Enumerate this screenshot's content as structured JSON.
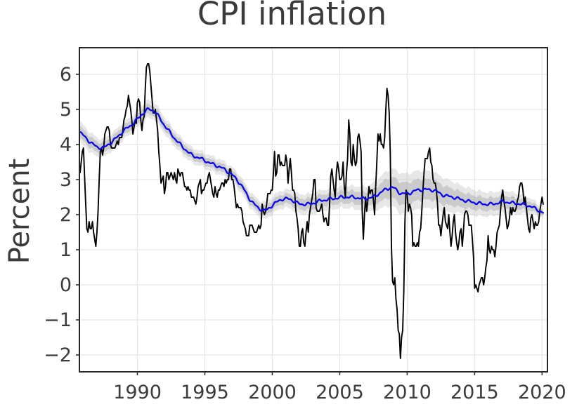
{
  "figure": {
    "title": "CPI inflation",
    "ylabel": "Percent"
  },
  "chart_data": {
    "type": "line",
    "title": "CPI inflation",
    "xlabel": "",
    "ylabel": "Percent",
    "xlim": [
      1985.7,
      2020.4
    ],
    "ylim": [
      -2.48,
      6.76
    ],
    "grid": true,
    "legend_position": "none",
    "xticks": {
      "values": [
        1990,
        1995,
        2000,
        2005,
        2010,
        2015,
        2020
      ],
      "labels": [
        "1990",
        "1995",
        "2000",
        "2005",
        "2010",
        "2015",
        "2020"
      ]
    },
    "yticks": {
      "values": [
        6,
        5,
        4,
        3,
        2,
        1,
        0,
        -1,
        -2
      ],
      "labels": [
        "6",
        "5",
        "4",
        "3",
        "2",
        "1",
        "0",
        "−1",
        "−2"
      ]
    },
    "style": {
      "background": "#ffffff",
      "grid_color": "#e7e7e7",
      "frame_color": "#262626",
      "tick_color": "#333333",
      "text_color": "#3b3b3b",
      "cpi_line_color": "#000000",
      "trend_line_color": "#0a0ae6",
      "band_outer_color": "#bfbfbf",
      "band_inner_color": "#a8a8a8"
    },
    "series": [
      {
        "name": "cpi-inflation-monthly",
        "type": "line",
        "color": "#000000",
        "start_year": 1985.75,
        "step_years": 0.0833333,
        "values": [
          3.2,
          3.5,
          3.8,
          3.9,
          3.1,
          2.3,
          1.6,
          1.5,
          1.8,
          1.6,
          1.6,
          1.8,
          1.5,
          1.3,
          1.1,
          1.5,
          2.1,
          3.0,
          3.8,
          3.9,
          3.7,
          3.9,
          4.3,
          4.4,
          4.5,
          4.5,
          4.4,
          4.0,
          3.9,
          3.9,
          3.9,
          3.9,
          4.0,
          4.1,
          4.0,
          4.2,
          4.2,
          4.2,
          4.4,
          4.7,
          4.8,
          5.0,
          5.1,
          5.4,
          5.2,
          5.0,
          4.7,
          4.3,
          4.5,
          4.7,
          4.6,
          5.2,
          5.3,
          5.2,
          4.7,
          4.4,
          4.7,
          4.8,
          5.6,
          6.2,
          6.3,
          6.3,
          6.1,
          5.7,
          5.3,
          4.9,
          4.9,
          5.0,
          4.7,
          4.4,
          3.8,
          3.4,
          2.9,
          3.0,
          3.1,
          2.6,
          2.8,
          3.2,
          3.2,
          3.0,
          3.1,
          3.2,
          3.1,
          3.0,
          3.2,
          3.0,
          2.9,
          3.3,
          3.2,
          3.1,
          3.2,
          3.2,
          3.0,
          2.8,
          2.8,
          2.7,
          2.8,
          2.7,
          2.7,
          2.5,
          2.5,
          2.5,
          2.4,
          2.3,
          2.5,
          2.8,
          2.9,
          3.0,
          2.6,
          2.7,
          2.7,
          2.8,
          2.9,
          2.9,
          3.1,
          3.2,
          3.0,
          2.8,
          2.6,
          2.5,
          2.8,
          2.6,
          2.5,
          2.7,
          2.7,
          2.8,
          2.9,
          2.9,
          2.8,
          3.0,
          2.9,
          3.0,
          3.0,
          3.3,
          3.3,
          3.0,
          3.0,
          2.8,
          2.5,
          2.2,
          2.3,
          2.2,
          2.2,
          2.2,
          2.1,
          1.8,
          1.7,
          1.6,
          1.4,
          1.4,
          1.4,
          1.7,
          1.7,
          1.7,
          1.6,
          1.5,
          1.5,
          1.5,
          1.6,
          1.7,
          1.6,
          1.7,
          2.3,
          2.1,
          2.0,
          2.1,
          2.3,
          2.6,
          2.6,
          2.6,
          2.7,
          2.7,
          3.2,
          3.8,
          3.1,
          3.2,
          3.7,
          3.7,
          3.4,
          3.5,
          3.4,
          3.4,
          3.4,
          3.7,
          3.5,
          2.9,
          3.3,
          3.6,
          3.2,
          2.7,
          2.7,
          2.6,
          2.1,
          1.9,
          1.6,
          1.1,
          1.1,
          1.5,
          1.6,
          1.2,
          1.1,
          1.5,
          1.8,
          1.5,
          2.0,
          2.2,
          2.4,
          2.6,
          3.0,
          3.0,
          2.2,
          2.1,
          2.1,
          2.1,
          2.2,
          2.3,
          2.0,
          1.8,
          1.9,
          1.9,
          1.7,
          1.7,
          2.3,
          3.1,
          3.3,
          3.0,
          2.7,
          2.5,
          3.2,
          3.5,
          3.3,
          3.0,
          3.0,
          3.1,
          3.5,
          2.8,
          2.5,
          3.2,
          3.6,
          4.7,
          4.3,
          3.5,
          3.4,
          4.0,
          3.6,
          3.4,
          3.5,
          4.2,
          4.3,
          4.1,
          3.8,
          2.1,
          1.3,
          2.0,
          2.5,
          2.1,
          2.4,
          2.8,
          2.6,
          2.7,
          2.7,
          2.4,
          2.0,
          2.8,
          3.5,
          4.3,
          4.1,
          4.3,
          4.0,
          4.0,
          3.9,
          4.2,
          5.0,
          5.6,
          5.4,
          4.9,
          3.7,
          1.1,
          0.1,
          0.0,
          0.2,
          -0.4,
          -0.7,
          -1.3,
          -1.4,
          -2.1,
          -1.5,
          -1.3,
          -0.2,
          1.8,
          2.7,
          2.6,
          2.1,
          2.3,
          2.2,
          2.0,
          1.1,
          1.2,
          1.1,
          1.1,
          1.2,
          1.1,
          1.5,
          1.6,
          2.1,
          2.7,
          3.2,
          3.6,
          3.6,
          3.6,
          3.8,
          3.9,
          3.5,
          3.4,
          3.0,
          2.9,
          2.9,
          2.7,
          2.3,
          1.7,
          1.7,
          1.4,
          1.7,
          2.0,
          2.2,
          1.8,
          1.7,
          1.6,
          2.0,
          1.5,
          1.1,
          1.4,
          1.8,
          2.0,
          1.5,
          1.2,
          1.0,
          1.2,
          1.5,
          1.6,
          1.1,
          1.5,
          2.0,
          2.1,
          2.1,
          2.0,
          1.7,
          1.7,
          1.7,
          1.3,
          0.8,
          -0.1,
          0.0,
          -0.1,
          -0.2,
          0.0,
          0.1,
          0.2,
          0.2,
          0.0,
          0.2,
          0.5,
          0.7,
          1.4,
          1.0,
          0.9,
          1.1,
          1.0,
          1.0,
          0.8,
          1.1,
          1.5,
          1.6,
          1.7,
          2.1,
          2.5,
          2.7,
          2.4,
          2.2,
          1.9,
          1.6,
          1.7,
          1.9,
          2.2,
          2.0,
          2.2,
          2.1,
          2.1,
          2.2,
          2.4,
          2.5,
          2.8,
          2.9,
          2.9,
          2.7,
          2.3,
          2.5,
          2.2,
          1.9,
          1.6,
          1.5,
          1.9,
          2.0,
          1.8,
          1.6,
          1.8,
          1.7,
          1.7,
          1.8,
          2.1,
          2.3,
          2.5,
          2.3
        ]
      },
      {
        "name": "trend-estimate",
        "type": "line",
        "color": "#0a0ae6",
        "x": [
          1985.75,
          1986.4,
          1987.0,
          1987.5,
          1988.2,
          1989.0,
          1989.7,
          1990.3,
          1990.8,
          1991.3,
          1992.0,
          1992.7,
          1993.3,
          1994.0,
          1994.7,
          1995.5,
          1996.2,
          1997.0,
          1997.7,
          1998.3,
          1998.9,
          1999.5,
          2000.1,
          2000.7,
          2001.3,
          2002.0,
          2002.8,
          2003.6,
          2004.4,
          2005.2,
          2006.0,
          2006.8,
          2007.5,
          2008.3,
          2008.9,
          2009.5,
          2010.1,
          2010.7,
          2011.3,
          2012.0,
          2012.7,
          2013.4,
          2014.1,
          2014.9,
          2015.7,
          2016.4,
          2017.1,
          2017.8,
          2018.5,
          2019.1,
          2019.6,
          2020.1
        ],
        "y": [
          4.35,
          4.1,
          3.92,
          3.9,
          4.1,
          4.4,
          4.6,
          4.85,
          5.02,
          4.95,
          4.55,
          4.2,
          3.95,
          3.7,
          3.6,
          3.45,
          3.35,
          3.15,
          2.85,
          2.45,
          2.2,
          2.1,
          2.3,
          2.45,
          2.45,
          2.3,
          2.3,
          2.4,
          2.45,
          2.5,
          2.5,
          2.45,
          2.5,
          2.7,
          2.8,
          2.6,
          2.6,
          2.7,
          2.72,
          2.7,
          2.55,
          2.5,
          2.42,
          2.35,
          2.3,
          2.3,
          2.38,
          2.33,
          2.3,
          2.25,
          2.15,
          2.05
        ]
      }
    ],
    "band": {
      "name": "trend-uncertainty-band",
      "x": [
        1985.75,
        1988,
        1991,
        1994,
        1997,
        1999,
        2001,
        2003,
        2005,
        2007,
        2008.5,
        2009.5,
        2011,
        2012.5,
        2014,
        2015.5,
        2017,
        2018.5,
        2019.5,
        2020.1
      ],
      "outer_halfwidth": [
        0.3,
        0.25,
        0.25,
        0.22,
        0.22,
        0.24,
        0.26,
        0.3,
        0.3,
        0.35,
        0.5,
        0.58,
        0.55,
        0.5,
        0.4,
        0.35,
        0.33,
        0.28,
        0.2,
        0.13
      ],
      "inner_halfwidth": [
        0.17,
        0.14,
        0.14,
        0.12,
        0.12,
        0.13,
        0.14,
        0.17,
        0.17,
        0.19,
        0.28,
        0.32,
        0.3,
        0.28,
        0.22,
        0.19,
        0.18,
        0.15,
        0.11,
        0.07
      ]
    }
  }
}
